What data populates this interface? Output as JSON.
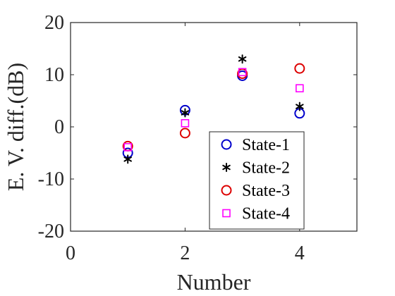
{
  "chart_data": {
    "type": "scatter",
    "xlabel": "Number",
    "ylabel": "E. V. diff.(dB)",
    "xlim": [
      0,
      5
    ],
    "ylim": [
      -20,
      20
    ],
    "xticks": [
      0,
      2,
      4
    ],
    "yticks": [
      -20,
      -10,
      0,
      10,
      20
    ],
    "grid": true,
    "legend": {
      "placement": "bottom-right"
    },
    "series": [
      {
        "name": "State-1",
        "marker": "circle",
        "color": "#0000CC",
        "x": [
          1,
          2,
          3,
          4
        ],
        "y": [
          -5,
          3.2,
          9.8,
          2.6
        ]
      },
      {
        "name": "State-2",
        "marker": "asterisk",
        "color": "#000000",
        "x": [
          1,
          2,
          3,
          4
        ],
        "y": [
          -6.2,
          2.7,
          13,
          3.9
        ]
      },
      {
        "name": "State-3",
        "marker": "circle",
        "color": "#DD0000",
        "x": [
          1,
          2,
          3,
          4
        ],
        "y": [
          -3.7,
          -1.2,
          10.2,
          11.2
        ]
      },
      {
        "name": "State-4",
        "marker": "square",
        "color": "#FF00FF",
        "x": [
          1,
          2,
          3,
          4
        ],
        "y": [
          -3.9,
          0.7,
          10.5,
          7.4
        ]
      }
    ]
  }
}
